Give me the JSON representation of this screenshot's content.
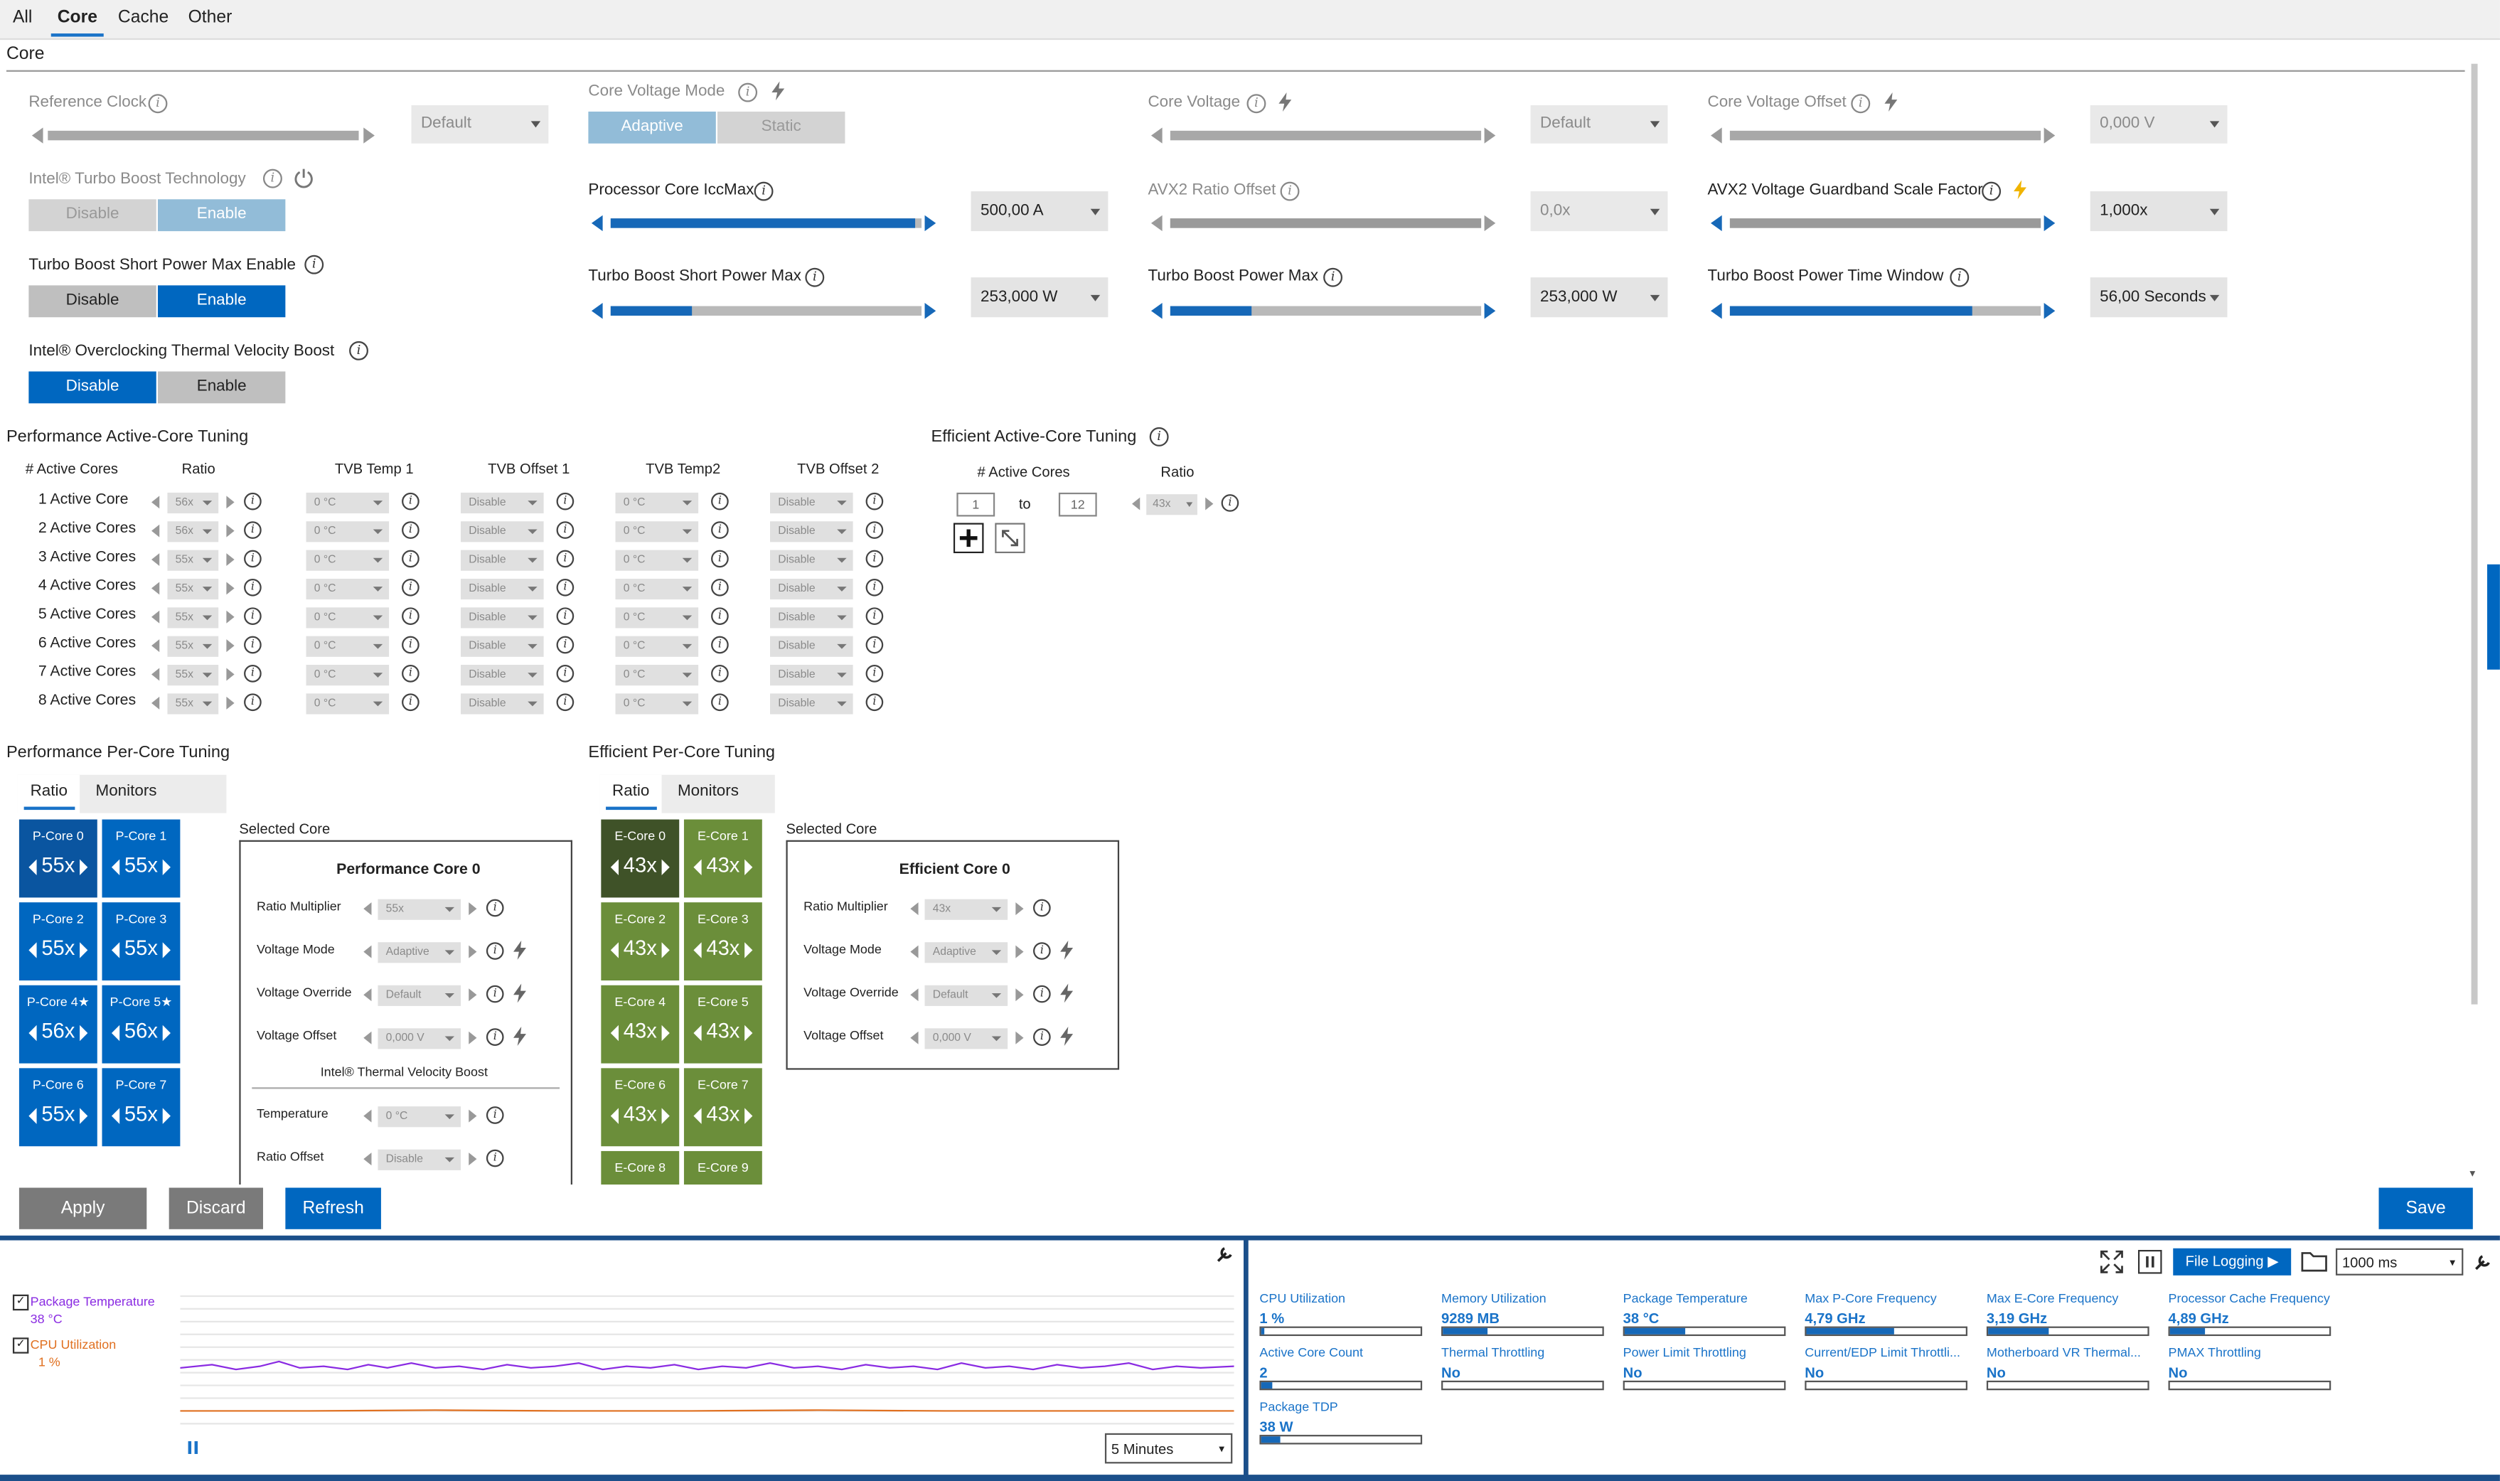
{
  "tabs": [
    "All",
    "Core",
    "Cache",
    "Other"
  ],
  "section_title": "Core",
  "controls": {
    "reference_clock": {
      "label": "Reference Clock",
      "value": "Default"
    },
    "core_voltage_mode": {
      "label": "Core Voltage Mode",
      "options": [
        "Adaptive",
        "Static"
      ],
      "selected": "Adaptive"
    },
    "core_voltage": {
      "label": "Core Voltage",
      "value": "Default"
    },
    "core_voltage_offset": {
      "label": "Core Voltage Offset",
      "value": "0,000 V"
    },
    "turbo_boost_tech": {
      "label": "Intel® Turbo Boost Technology",
      "options": [
        "Disable",
        "Enable"
      ],
      "selected": "Enable"
    },
    "iccmax": {
      "label": "Processor Core IccMax",
      "value": "500,00 A",
      "level": 0.98
    },
    "avx2_ratio_offset": {
      "label": "AVX2 Ratio Offset",
      "value": "0,0x",
      "level": 1.0
    },
    "avx2_guardband": {
      "label": "AVX2 Voltage Guardband Scale Factor",
      "value": "1,000x",
      "level": 1.0
    },
    "short_power_max_enable": {
      "label": "Turbo Boost Short Power Max Enable",
      "options": [
        "Disable",
        "Enable"
      ],
      "selected": "Enable"
    },
    "short_power_max": {
      "label": "Turbo Boost Short Power Max",
      "value": "253,000 W",
      "level": 0.26
    },
    "power_max": {
      "label": "Turbo Boost Power Max",
      "value": "253,000 W",
      "level": 0.26
    },
    "power_time_window": {
      "label": "Turbo Boost Power Time Window",
      "value": "56,00 Seconds",
      "level": 0.78
    },
    "tvb": {
      "label": "Intel® Overclocking Thermal Velocity Boost",
      "options": [
        "Disable",
        "Enable"
      ],
      "selected": "Disable"
    }
  },
  "perf_active_core": {
    "title": "Performance Active-Core Tuning",
    "headers": [
      "# Active Cores",
      "Ratio",
      "TVB Temp 1",
      "TVB Offset 1",
      "TVB Temp2",
      "TVB Offset 2"
    ],
    "rows": [
      {
        "label": "1 Active Core",
        "ratio": "56x",
        "temp1": "0 °C",
        "off1": "Disable",
        "temp2": "0 °C",
        "off2": "Disable"
      },
      {
        "label": "2 Active Cores",
        "ratio": "56x",
        "temp1": "0 °C",
        "off1": "Disable",
        "temp2": "0 °C",
        "off2": "Disable"
      },
      {
        "label": "3 Active Cores",
        "ratio": "55x",
        "temp1": "0 °C",
        "off1": "Disable",
        "temp2": "0 °C",
        "off2": "Disable"
      },
      {
        "label": "4 Active Cores",
        "ratio": "55x",
        "temp1": "0 °C",
        "off1": "Disable",
        "temp2": "0 °C",
        "off2": "Disable"
      },
      {
        "label": "5 Active Cores",
        "ratio": "55x",
        "temp1": "0 °C",
        "off1": "Disable",
        "temp2": "0 °C",
        "off2": "Disable"
      },
      {
        "label": "6 Active Cores",
        "ratio": "55x",
        "temp1": "0 °C",
        "off1": "Disable",
        "temp2": "0 °C",
        "off2": "Disable"
      },
      {
        "label": "7 Active Cores",
        "ratio": "55x",
        "temp1": "0 °C",
        "off1": "Disable",
        "temp2": "0 °C",
        "off2": "Disable"
      },
      {
        "label": "8 Active Cores",
        "ratio": "55x",
        "temp1": "0 °C",
        "off1": "Disable",
        "temp2": "0 °C",
        "off2": "Disable"
      }
    ]
  },
  "eff_active_core": {
    "title": "Efficient Active-Core Tuning",
    "headers": [
      "# Active Cores",
      "Ratio"
    ],
    "from": "1",
    "to_label": "to",
    "to": "12",
    "ratio": "43x"
  },
  "perf_per_core": {
    "title": "Performance Per-Core Tuning",
    "tabs": [
      "Ratio",
      "Monitors"
    ],
    "cores": [
      {
        "name": "P-Core 0",
        "ratio": "55x"
      },
      {
        "name": "P-Core 1",
        "ratio": "55x"
      },
      {
        "name": "P-Core 2",
        "ratio": "55x"
      },
      {
        "name": "P-Core 3",
        "ratio": "55x"
      },
      {
        "name": "P-Core 4★",
        "ratio": "56x"
      },
      {
        "name": "P-Core 5★",
        "ratio": "56x"
      },
      {
        "name": "P-Core 6",
        "ratio": "55x"
      },
      {
        "name": "P-Core 7",
        "ratio": "55x"
      }
    ],
    "selected_label": "Selected Core",
    "panel": {
      "title": "Performance Core 0",
      "rows": [
        {
          "label": "Ratio Multiplier",
          "value": "55x"
        },
        {
          "label": "Voltage Mode",
          "value": "Adaptive"
        },
        {
          "label": "Voltage Override",
          "value": "Default"
        },
        {
          "label": "Voltage Offset",
          "value": "0,000 V"
        }
      ],
      "tvb_title": "Intel® Thermal Velocity Boost",
      "tvb_rows": [
        {
          "label": "Temperature",
          "value": "0 °C"
        },
        {
          "label": "Ratio Offset",
          "value": "Disable"
        }
      ]
    }
  },
  "eff_per_core": {
    "title": "Efficient Per-Core Tuning",
    "tabs": [
      "Ratio",
      "Monitors"
    ],
    "cores": [
      {
        "name": "E-Core 0",
        "ratio": "43x"
      },
      {
        "name": "E-Core 1",
        "ratio": "43x"
      },
      {
        "name": "E-Core 2",
        "ratio": "43x"
      },
      {
        "name": "E-Core 3",
        "ratio": "43x"
      },
      {
        "name": "E-Core 4",
        "ratio": "43x"
      },
      {
        "name": "E-Core 5",
        "ratio": "43x"
      },
      {
        "name": "E-Core 6",
        "ratio": "43x"
      },
      {
        "name": "E-Core 7",
        "ratio": "43x"
      },
      {
        "name": "E-Core 8",
        "ratio": ""
      },
      {
        "name": "E-Core 9",
        "ratio": ""
      }
    ],
    "selected_label": "Selected Core",
    "panel": {
      "title": "Efficient Core 0",
      "rows": [
        {
          "label": "Ratio Multiplier",
          "value": "43x"
        },
        {
          "label": "Voltage Mode",
          "value": "Adaptive"
        },
        {
          "label": "Voltage Override",
          "value": "Default"
        },
        {
          "label": "Voltage Offset",
          "value": "0,000 V"
        }
      ]
    }
  },
  "actions": {
    "apply": "Apply",
    "discard": "Discard",
    "refresh": "Refresh",
    "save": "Save"
  },
  "graph": {
    "legend": [
      {
        "name": "Package Temperature",
        "value": "38 °C",
        "color": "#8a2be2"
      },
      {
        "name": "CPU Utilization",
        "value": "1 %",
        "color": "#e07020"
      }
    ],
    "time_range": "5 Minutes"
  },
  "monitor_toolbar": {
    "file_logging": "File Logging ▶",
    "interval": "1000 ms"
  },
  "metrics": [
    {
      "name": "CPU Utilization",
      "value": "1 %",
      "fill": 0.02
    },
    {
      "name": "Memory Utilization",
      "value": "9289  MB",
      "fill": 0.28
    },
    {
      "name": "Package Temperature",
      "value": "38 °C",
      "fill": 0.38
    },
    {
      "name": "Max P-Core Frequency",
      "value": "4,79 GHz",
      "fill": 0.55
    },
    {
      "name": "Max E-Core Frequency",
      "value": "3,19 GHz",
      "fill": 0.38
    },
    {
      "name": "Processor Cache Frequency",
      "value": "4,89 GHz",
      "fill": 0.22
    },
    {
      "name": "Active Core Count",
      "value": "2",
      "fill": 0.07
    },
    {
      "name": "Thermal Throttling",
      "value": "No",
      "fill": 0
    },
    {
      "name": "Power Limit Throttling",
      "value": "No",
      "fill": 0
    },
    {
      "name": "Current/EDP Limit Throttli...",
      "value": "No",
      "fill": 0
    },
    {
      "name": "Motherboard VR Thermal...",
      "value": "No",
      "fill": 0
    },
    {
      "name": "PMAX Throttling",
      "value": "No",
      "fill": 0
    },
    {
      "name": "Package TDP",
      "value": "38 W",
      "fill": 0.12
    }
  ]
}
